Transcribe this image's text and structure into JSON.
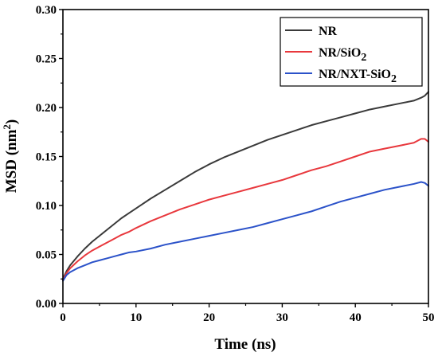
{
  "chart_data": {
    "type": "line",
    "title": "",
    "xlabel": "Time (ns)",
    "ylabel_main": "MSD (nm",
    "ylabel_sup": "2",
    "ylabel_tail": ")",
    "xlim": [
      0,
      50
    ],
    "ylim": [
      0.0,
      0.3
    ],
    "xticks": [
      0,
      10,
      20,
      30,
      40,
      50
    ],
    "xtick_labels": [
      "0",
      "10",
      "20",
      "30",
      "40",
      "50"
    ],
    "yticks": [
      0.0,
      0.05,
      0.1,
      0.15,
      0.2,
      0.25,
      0.3
    ],
    "ytick_labels": [
      "0.00",
      "0.05",
      "0.10",
      "0.15",
      "0.20",
      "0.25",
      "0.30"
    ],
    "grid": false,
    "legend_position": "top-right",
    "x": [
      0,
      0.5,
      1,
      2,
      3,
      4,
      5,
      6,
      7,
      8,
      9,
      10,
      12,
      14,
      16,
      18,
      20,
      22,
      24,
      26,
      28,
      30,
      32,
      34,
      36,
      38,
      40,
      42,
      44,
      46,
      48,
      49,
      49.5,
      50
    ],
    "series": [
      {
        "name": "NR",
        "legend_main": "NR",
        "legend_sub": "",
        "legend_tail": "",
        "color": "#3a3a3a",
        "values": [
          0.025,
          0.033,
          0.039,
          0.048,
          0.056,
          0.063,
          0.069,
          0.075,
          0.081,
          0.087,
          0.092,
          0.097,
          0.107,
          0.116,
          0.125,
          0.134,
          0.142,
          0.149,
          0.155,
          0.161,
          0.167,
          0.172,
          0.177,
          0.182,
          0.186,
          0.19,
          0.194,
          0.198,
          0.201,
          0.204,
          0.207,
          0.21,
          0.212,
          0.216
        ]
      },
      {
        "name": "NR/SiO2",
        "legend_main": "NR/SiO",
        "legend_sub": "2",
        "legend_tail": "",
        "color": "#e8383d",
        "values": [
          0.024,
          0.031,
          0.036,
          0.043,
          0.049,
          0.054,
          0.058,
          0.062,
          0.066,
          0.07,
          0.073,
          0.077,
          0.084,
          0.09,
          0.096,
          0.101,
          0.106,
          0.11,
          0.114,
          0.118,
          0.122,
          0.126,
          0.131,
          0.136,
          0.14,
          0.145,
          0.15,
          0.155,
          0.158,
          0.161,
          0.164,
          0.168,
          0.168,
          0.165
        ]
      },
      {
        "name": "NR/NXT-SiO2",
        "legend_main": "NR/NXT-SiO",
        "legend_sub": "2",
        "legend_tail": "",
        "color": "#2b52c9",
        "values": [
          0.023,
          0.029,
          0.032,
          0.036,
          0.039,
          0.042,
          0.044,
          0.046,
          0.048,
          0.05,
          0.052,
          0.053,
          0.056,
          0.06,
          0.063,
          0.066,
          0.069,
          0.072,
          0.075,
          0.078,
          0.082,
          0.086,
          0.09,
          0.094,
          0.099,
          0.104,
          0.108,
          0.112,
          0.116,
          0.119,
          0.122,
          0.124,
          0.123,
          0.12
        ]
      }
    ]
  }
}
